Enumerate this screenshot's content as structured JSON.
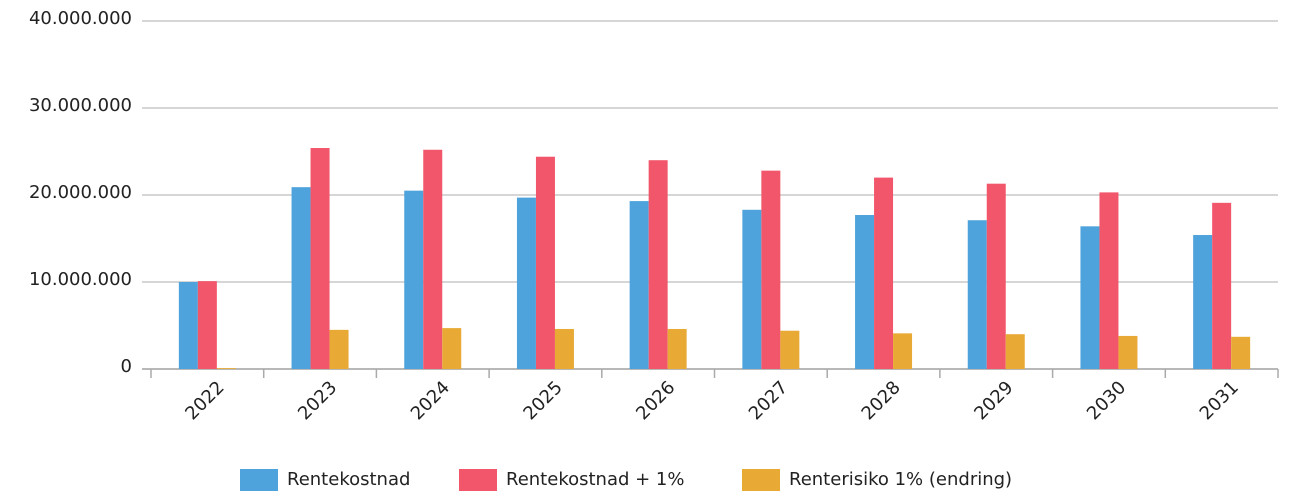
{
  "chart_data": {
    "type": "bar",
    "categories": [
      "2022",
      "2023",
      "2024",
      "2025",
      "2026",
      "2027",
      "2028",
      "2029",
      "2030",
      "2031"
    ],
    "series": [
      {
        "name": "Rentekostnad",
        "color": "#4fa3dc",
        "values": [
          10000000,
          20900000,
          20500000,
          19700000,
          19300000,
          18300000,
          17700000,
          17100000,
          16400000,
          15400000
        ]
      },
      {
        "name": "Rentekostnad + 1%",
        "color": "#f2566b",
        "values": [
          10100000,
          25400000,
          25200000,
          24400000,
          24000000,
          22800000,
          22000000,
          21300000,
          20300000,
          19100000
        ]
      },
      {
        "name": "Renterisiko 1% (endring)",
        "color": "#e8aa35",
        "values": [
          100000,
          4500000,
          4700000,
          4600000,
          4600000,
          4400000,
          4100000,
          4000000,
          3800000,
          3700000
        ]
      }
    ],
    "ylim": [
      0,
      40000000
    ],
    "yticks": [
      0,
      {
        "value": 10000000,
        "label": "10.000.000"
      },
      {
        "value": 20000000,
        "label": "20.000.000"
      },
      {
        "value": 30000000,
        "label": "30.000.000"
      },
      {
        "value": 40000000,
        "label": "40.000.000"
      }
    ],
    "grid": true,
    "legend": "bottom"
  }
}
